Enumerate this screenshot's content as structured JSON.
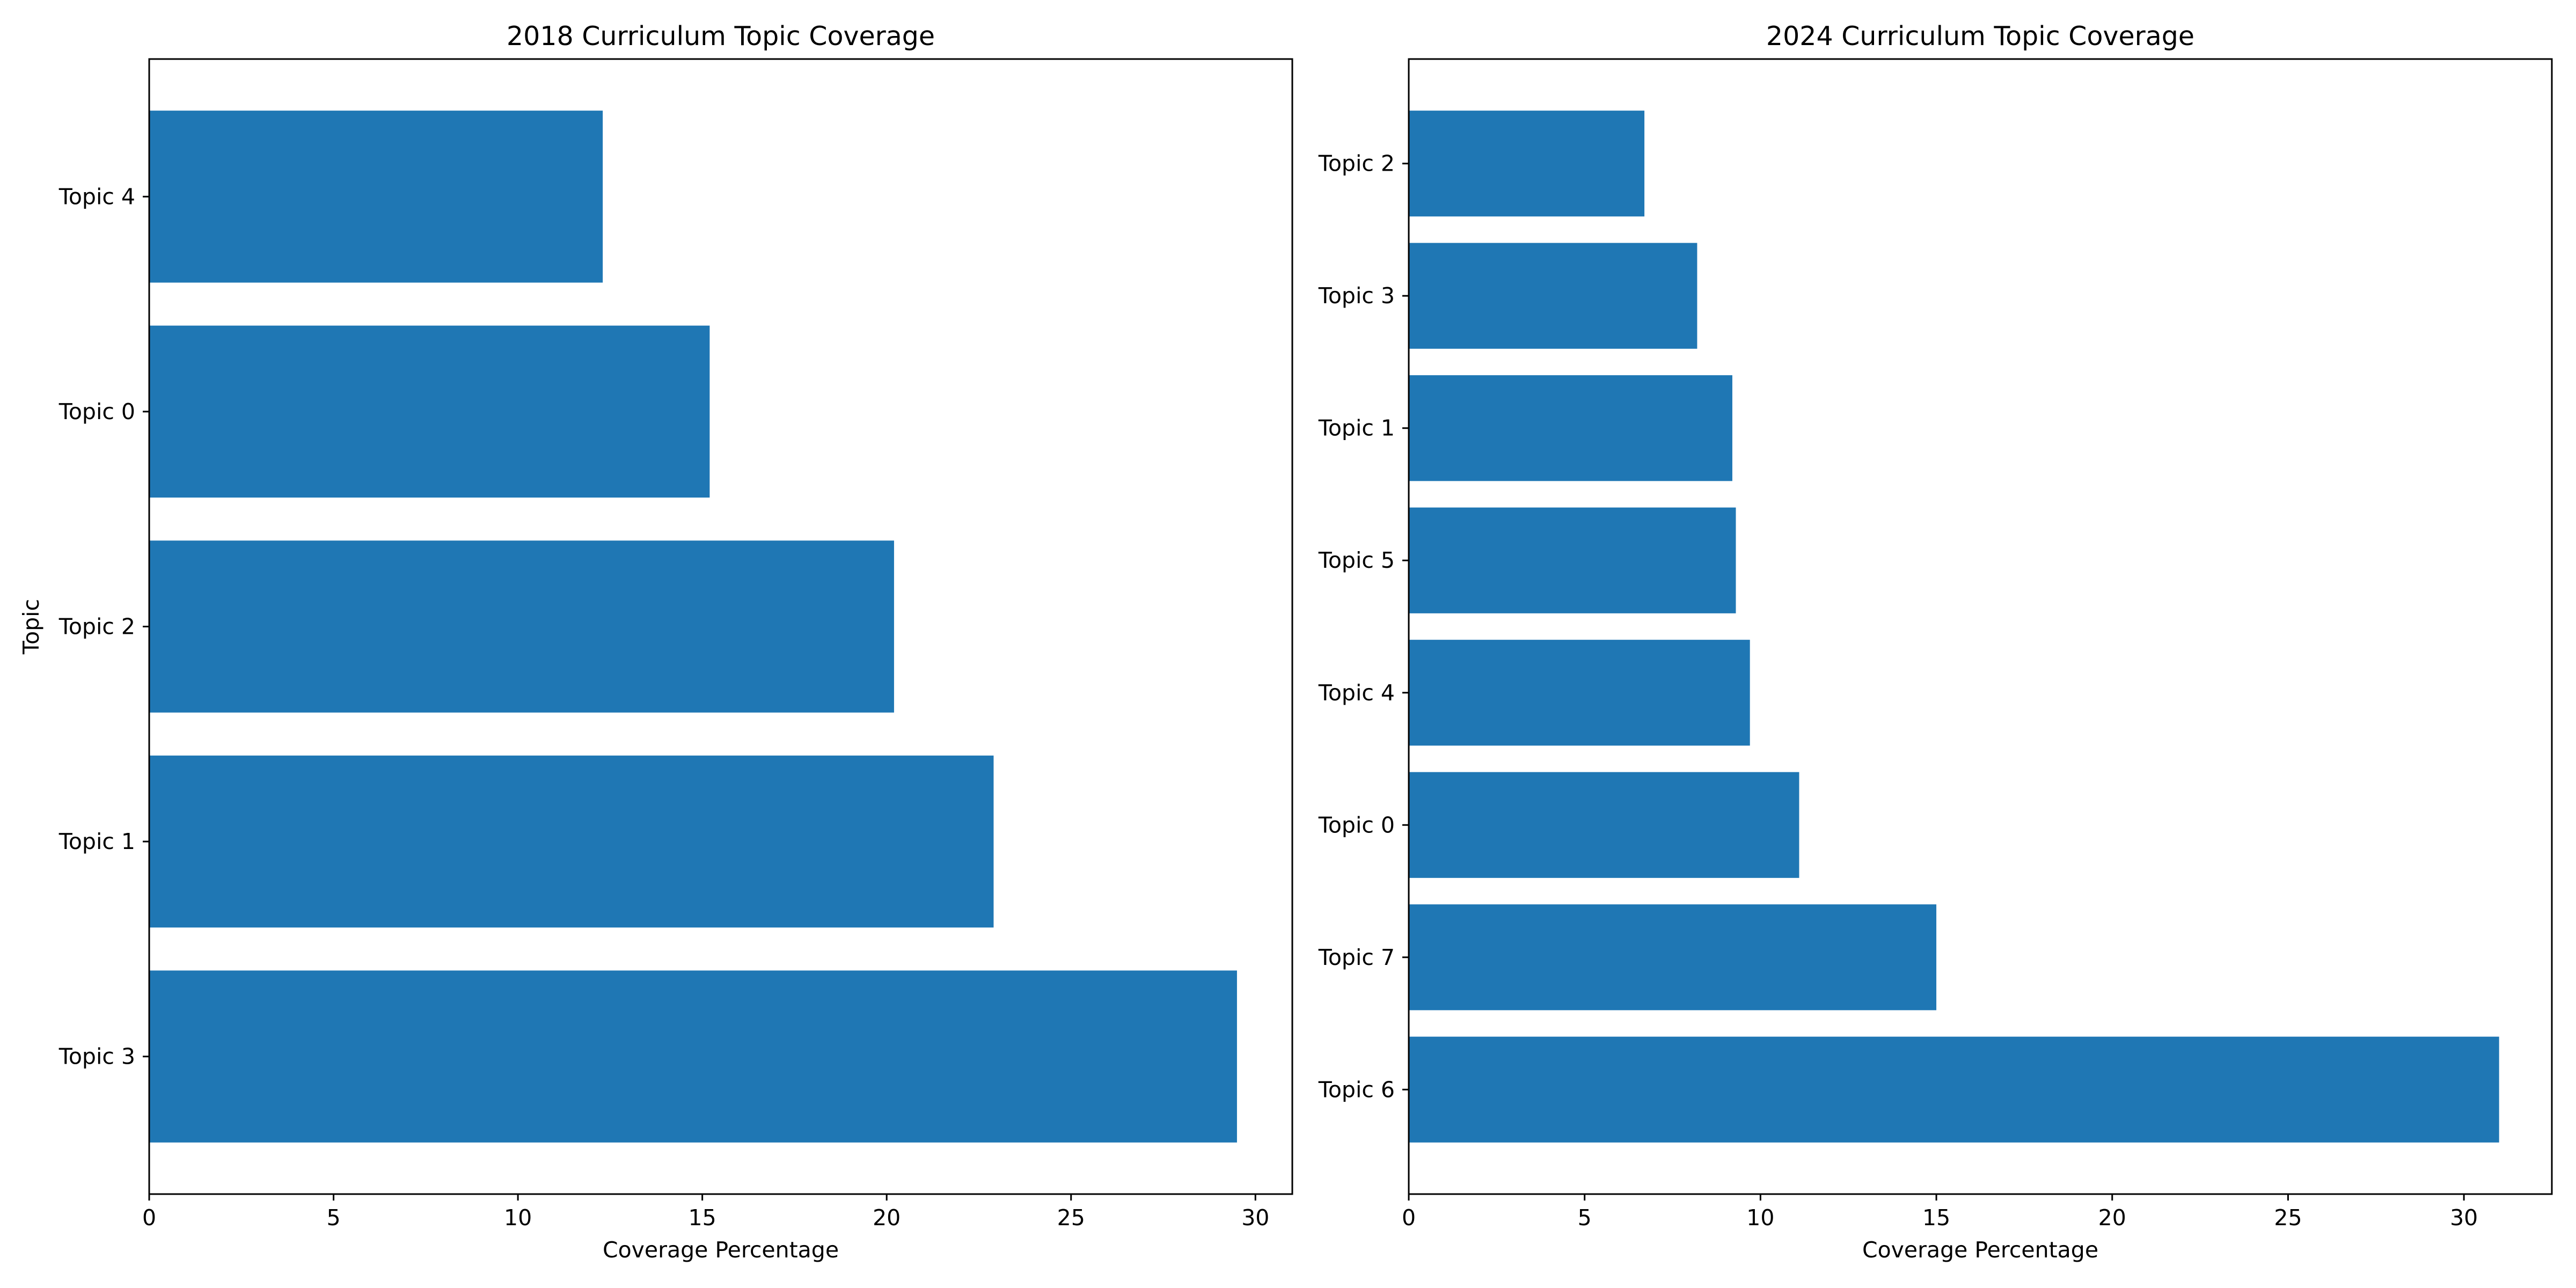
{
  "chart_data": [
    {
      "type": "bar",
      "orientation": "horizontal",
      "title": "2018 Curriculum Topic Coverage",
      "xlabel": "Coverage Percentage",
      "ylabel": "Topic",
      "categories": [
        "Topic 3",
        "Topic 1",
        "Topic 2",
        "Topic 0",
        "Topic 4"
      ],
      "values": [
        29.5,
        22.9,
        20.2,
        15.2,
        12.3
      ],
      "xlim": [
        0,
        31
      ],
      "xticks": [
        0,
        5,
        10,
        15,
        20,
        25,
        30
      ],
      "grid": false,
      "color": "#1f77b4"
    },
    {
      "type": "bar",
      "orientation": "horizontal",
      "title": "2024 Curriculum Topic Coverage",
      "xlabel": "Coverage Percentage",
      "ylabel": "",
      "categories": [
        "Topic 6",
        "Topic 7",
        "Topic 0",
        "Topic 4",
        "Topic 5",
        "Topic 1",
        "Topic 3",
        "Topic 2"
      ],
      "values": [
        31.0,
        15.0,
        11.1,
        9.7,
        9.3,
        9.2,
        8.2,
        6.7
      ],
      "xlim": [
        0,
        32.5
      ],
      "xticks": [
        0,
        5,
        10,
        15,
        20,
        25,
        30
      ],
      "grid": false,
      "color": "#1f77b4"
    }
  ]
}
